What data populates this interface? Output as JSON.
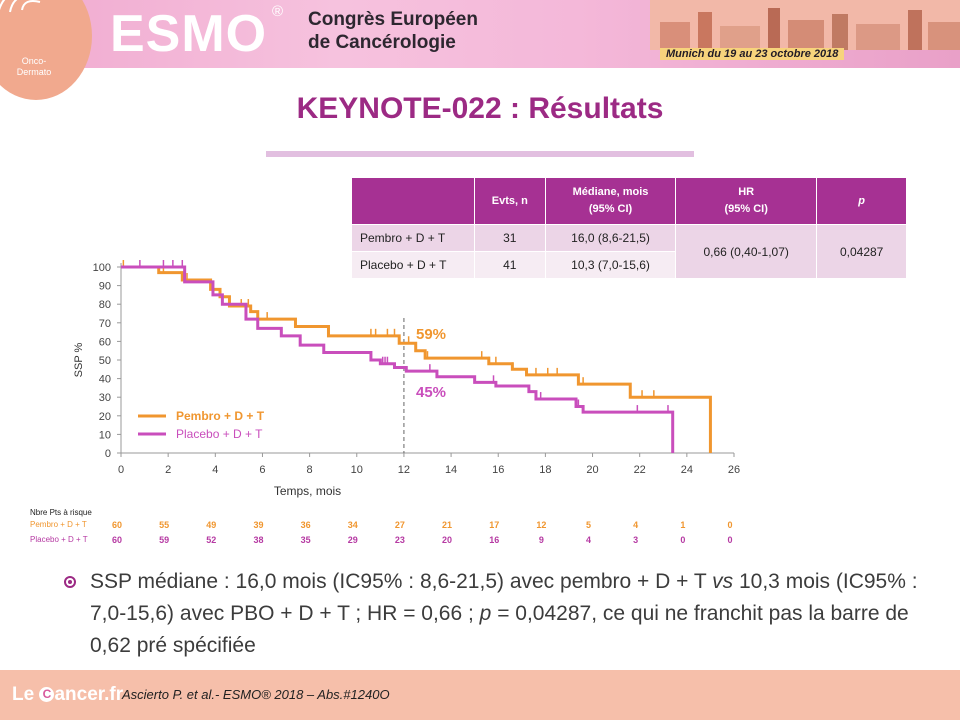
{
  "header": {
    "logo_text_1": "Onco-",
    "logo_text_2": "Dermato",
    "esmo": "ESMO",
    "registered": "®",
    "congress_line1": "Congrès Européen",
    "congress_line2": "de Cancérologie",
    "dates": "Munich du 19 au 23 octobre 2018"
  },
  "title": "KEYNOTE-022  : Résultats",
  "table": {
    "headers": [
      "",
      "Evts, n",
      "Médiane, mois\n(95% CI)",
      "HR\n(95% CI)",
      "p"
    ],
    "rows": [
      {
        "arm": "Pembro  + D + T",
        "events": "31",
        "median": "16,0 (8,6-21,5)"
      },
      {
        "arm": "Placebo + D + T",
        "events": "41",
        "median": "10,3 (7,0-15,6)"
      }
    ],
    "hr": "0,66 (0,40-1,07)",
    "p": "0,04287"
  },
  "chart_data": {
    "type": "line",
    "title": "",
    "xlabel": "Temps, mois",
    "ylabel": "SSP %",
    "xlim": [
      0,
      26
    ],
    "ylim": [
      0,
      100
    ],
    "xticks": [
      0,
      2,
      4,
      6,
      8,
      10,
      12,
      14,
      16,
      18,
      20,
      22,
      24,
      26
    ],
    "yticks": [
      0,
      10,
      20,
      30,
      40,
      50,
      60,
      70,
      80,
      90,
      100
    ],
    "reference_line_x": 12,
    "legend_position": "bottom-left",
    "series": [
      {
        "name": "Pembro + D + T",
        "color": "#f0962f",
        "annotation": "59%",
        "steps": [
          [
            0,
            100
          ],
          [
            1.6,
            100
          ],
          [
            1.6,
            97
          ],
          [
            2.6,
            97
          ],
          [
            2.6,
            93
          ],
          [
            3.8,
            93
          ],
          [
            3.8,
            88
          ],
          [
            4.2,
            88
          ],
          [
            4.2,
            84
          ],
          [
            4.6,
            84
          ],
          [
            4.6,
            79
          ],
          [
            5.5,
            79
          ],
          [
            5.5,
            76
          ],
          [
            5.8,
            76
          ],
          [
            5.8,
            72
          ],
          [
            7.4,
            72
          ],
          [
            7.4,
            68
          ],
          [
            8.8,
            68
          ],
          [
            8.8,
            63
          ],
          [
            11.8,
            63
          ],
          [
            11.8,
            59
          ],
          [
            12.5,
            59
          ],
          [
            12.5,
            55
          ],
          [
            12.9,
            55
          ],
          [
            12.9,
            51
          ],
          [
            15.6,
            51
          ],
          [
            15.6,
            48
          ],
          [
            16.6,
            48
          ],
          [
            16.6,
            45
          ],
          [
            17.2,
            45
          ],
          [
            17.2,
            42
          ],
          [
            19.4,
            42
          ],
          [
            19.4,
            37
          ],
          [
            21.6,
            37
          ],
          [
            21.6,
            30
          ],
          [
            25,
            30
          ],
          [
            25,
            0
          ]
        ],
        "censor_times": [
          0.1,
          1.8,
          2.8,
          5.1,
          5.4,
          6.2,
          10.6,
          10.8,
          11.3,
          11.6,
          12.2,
          13.0,
          15.3,
          15.6,
          15.9,
          16.6,
          17.6,
          18.1,
          18.5,
          19.6,
          22.1,
          22.6
        ]
      },
      {
        "name": "Placebo + D + T",
        "color": "#c94ebc",
        "annotation": "45%",
        "steps": [
          [
            0,
            100
          ],
          [
            2.7,
            100
          ],
          [
            2.7,
            92
          ],
          [
            3.9,
            92
          ],
          [
            3.9,
            85
          ],
          [
            4.3,
            85
          ],
          [
            4.3,
            80
          ],
          [
            5.3,
            80
          ],
          [
            5.3,
            72
          ],
          [
            5.8,
            72
          ],
          [
            5.8,
            67
          ],
          [
            6.8,
            67
          ],
          [
            6.8,
            63
          ],
          [
            7.6,
            63
          ],
          [
            7.6,
            58
          ],
          [
            8.6,
            58
          ],
          [
            8.6,
            54
          ],
          [
            10.6,
            54
          ],
          [
            10.6,
            50
          ],
          [
            11.0,
            50
          ],
          [
            11.0,
            48
          ],
          [
            11.6,
            48
          ],
          [
            11.6,
            46
          ],
          [
            12.1,
            46
          ],
          [
            12.1,
            44
          ],
          [
            13.4,
            44
          ],
          [
            13.4,
            41
          ],
          [
            15.0,
            41
          ],
          [
            15.0,
            38
          ],
          [
            15.9,
            38
          ],
          [
            15.9,
            36
          ],
          [
            17.3,
            36
          ],
          [
            17.3,
            33
          ],
          [
            17.6,
            33
          ],
          [
            17.6,
            29
          ],
          [
            19.3,
            29
          ],
          [
            19.3,
            25
          ],
          [
            19.6,
            25
          ],
          [
            19.6,
            22
          ],
          [
            23.4,
            22
          ],
          [
            23.4,
            0
          ]
        ],
        "censor_times": [
          0.8,
          1.8,
          2.2,
          2.6,
          11.1,
          11.2,
          11.3,
          13.1,
          15.8,
          17.8,
          19.4,
          21.9,
          23.2
        ]
      }
    ],
    "at_risk": {
      "title": "Nbre Pts à risque",
      "times": [
        0,
        2,
        4,
        6,
        8,
        10,
        12,
        14,
        16,
        18,
        20,
        22,
        24,
        26
      ],
      "rows": [
        {
          "label": "Pembro + D + T",
          "color": "#f0962f",
          "values": [
            60,
            55,
            49,
            39,
            36,
            34,
            27,
            21,
            17,
            12,
            5,
            4,
            1,
            0
          ]
        },
        {
          "label": "Placebo + D + T",
          "color": "#b63aa3",
          "values": [
            60,
            59,
            52,
            38,
            35,
            29,
            23,
            20,
            16,
            9,
            4,
            3,
            0,
            0
          ]
        }
      ]
    }
  },
  "bullet": {
    "t1": "SSP médiane : 16,0 mois (IC95% : 8,6-21,5) avec pembro + D + T ",
    "vs": "vs",
    "t2": " 10,3 mois (IC95% : 7,0-15,6) avec PBO + D + T ; HR = 0,66 ; ",
    "p": "p",
    "t3": " = 0,04287, ce qui ne franchit pas la barre de 0,62 pré spécifiée"
  },
  "footer": {
    "logo_before": "Le ",
    "logo_o": "C",
    "logo_after": "ancer.fr",
    "reference": "Ascierto P. et al.- ESMO® 2018 – Abs.#1240O"
  }
}
